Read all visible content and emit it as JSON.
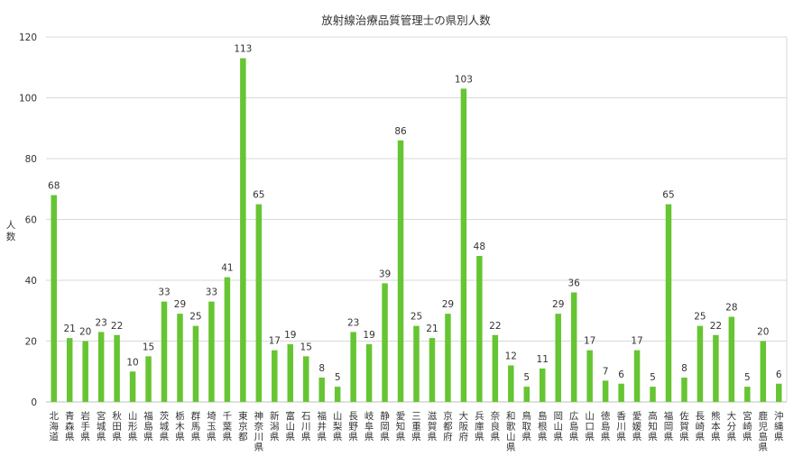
{
  "chart_data": {
    "type": "bar",
    "title": "放射線治療品質管理士の県別人数",
    "xlabel": "",
    "ylabel": "人数",
    "ylim": [
      0,
      120
    ],
    "yticks": [
      0,
      20,
      40,
      60,
      80,
      100,
      120
    ],
    "grid": true,
    "bar_color": "#66c532",
    "categories": [
      "北海道",
      "青森県",
      "岩手県",
      "宮城県",
      "秋田県",
      "山形県",
      "福島県",
      "茨城県",
      "栃木県",
      "群馬県",
      "埼玉県",
      "千葉県",
      "東京都",
      "神奈川県",
      "新潟県",
      "富山県",
      "石川県",
      "福井県",
      "山梨県",
      "長野県",
      "岐阜県",
      "静岡県",
      "愛知県",
      "三重県",
      "滋賀県",
      "京都府",
      "大阪府",
      "兵庫県",
      "奈良県",
      "和歌山県",
      "鳥取県",
      "島根県",
      "岡山県",
      "広島県",
      "山口県",
      "徳島県",
      "香川県",
      "愛媛県",
      "高知県",
      "福岡県",
      "佐賀県",
      "長崎県",
      "熊本県",
      "大分県",
      "宮崎県",
      "鹿児島県",
      "沖縄県"
    ],
    "values": [
      68,
      21,
      20,
      23,
      22,
      10,
      15,
      33,
      29,
      25,
      33,
      41,
      113,
      65,
      17,
      19,
      15,
      8,
      5,
      23,
      19,
      39,
      86,
      25,
      21,
      29,
      103,
      48,
      22,
      12,
      5,
      11,
      29,
      36,
      17,
      7,
      6,
      17,
      5,
      65,
      8,
      25,
      22,
      28,
      5,
      20,
      6
    ]
  }
}
